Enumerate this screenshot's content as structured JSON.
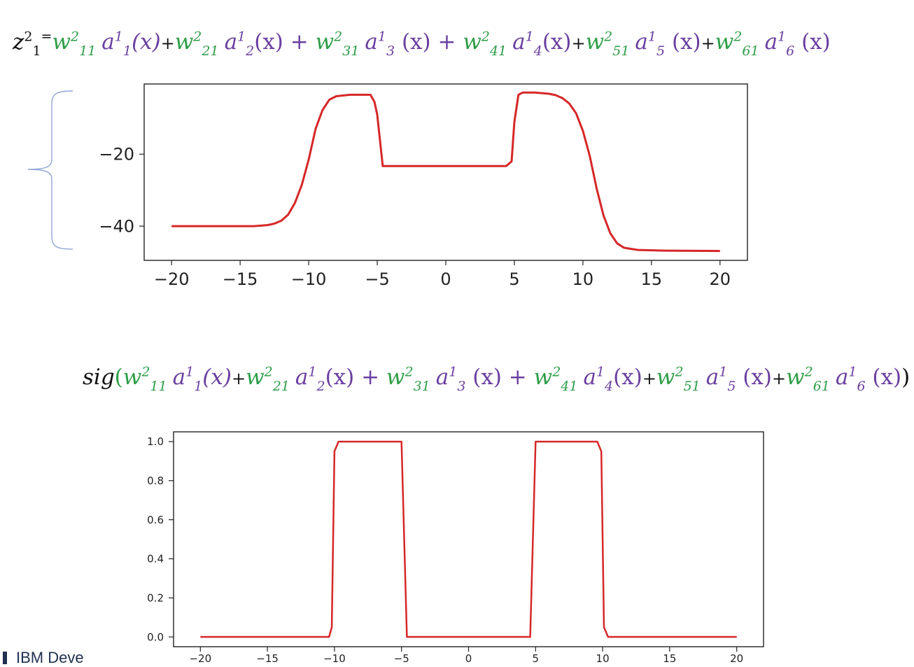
{
  "equation1": {
    "lhs": "z",
    "lhs_sup": "2",
    "lhs_sub": "1",
    "equals": "=",
    "terms": [
      {
        "w": "w",
        "wsup": "2",
        "wsub": "11",
        "a": "a",
        "asup": "1",
        "asub": "1",
        "arg": "(x)",
        "arg_italic": true,
        "op": "+"
      },
      {
        "w": "w",
        "wsup": "2",
        "wsub": "21",
        "a": "a",
        "asup": "1",
        "asub": "2",
        "arg": "(x)",
        "arg_italic": false,
        "op": " + "
      },
      {
        "w": "w",
        "wsup": "2",
        "wsub": "31",
        "a": "a",
        "asup": "1",
        "asub": "3",
        "arg": " (x)",
        "arg_italic": false,
        "op": " + "
      },
      {
        "w": "w",
        "wsup": "2",
        "wsub": "41",
        "a": "a",
        "asup": "1",
        "asub": "4",
        "arg": "(x)",
        "arg_italic": false,
        "op": "+"
      },
      {
        "w": "w",
        "wsup": "2",
        "wsub": "51",
        "a": "a",
        "asup": "1",
        "asub": "5",
        "arg": " (x)",
        "arg_italic": false,
        "op": "+"
      },
      {
        "w": "w",
        "wsup": "2",
        "wsub": "61",
        "a": "a",
        "asup": "1",
        "asub": "6",
        "arg": " (x)",
        "arg_italic": false,
        "op": ""
      }
    ]
  },
  "equation2": {
    "prefix": "sig",
    "open": "(",
    "close": ")",
    "terms": [
      {
        "w": "w",
        "wsup": "2",
        "wsub": "11",
        "a": "a",
        "asup": "1",
        "asub": "1",
        "arg": "(x)",
        "arg_italic": true,
        "op": "+"
      },
      {
        "w": "w",
        "wsup": "2",
        "wsub": "21",
        "a": "a",
        "asup": "1",
        "asub": "2",
        "arg": "(x)",
        "arg_italic": false,
        "op": " + "
      },
      {
        "w": "w",
        "wsup": "2",
        "wsub": "31",
        "a": "a",
        "asup": "1",
        "asub": "3",
        "arg": " (x)",
        "arg_italic": false,
        "op": " + "
      },
      {
        "w": "w",
        "wsup": "2",
        "wsub": "41",
        "a": "a",
        "asup": "1",
        "asub": "4",
        "arg": "(x)",
        "arg_italic": false,
        "op": "+"
      },
      {
        "w": "w",
        "wsup": "2",
        "wsub": "51",
        "a": "a",
        "asup": "1",
        "asub": "5",
        "arg": " (x)",
        "arg_italic": false,
        "op": "+"
      },
      {
        "w": "w",
        "wsup": "2",
        "wsub": "61",
        "a": "a",
        "asup": "1",
        "asub": "6",
        "arg": " (x)",
        "arg_italic": false,
        "op": ""
      }
    ]
  },
  "brand": {
    "text": "IBM Deve"
  },
  "colors": {
    "weight": "#2e9d48",
    "activation": "#6a3fa0",
    "line": "#d62728",
    "brace": "#8ea6d6"
  },
  "chart_data": [
    {
      "type": "line",
      "title": "",
      "xlabel": "",
      "ylabel": "",
      "xlim": [
        -22,
        22
      ],
      "ylim": [
        -49.5,
        -0.5
      ],
      "xticks": [
        -20,
        -15,
        -10,
        -5,
        0,
        5,
        10,
        15,
        20
      ],
      "xtick_labels": [
        "−20",
        "−15",
        "−10",
        "−5",
        "0",
        "5",
        "10",
        "15",
        "20"
      ],
      "yticks": [
        -20,
        -40
      ],
      "ytick_labels": [
        "−20",
        "−40"
      ],
      "grid": false,
      "series": [
        {
          "color": "#d62728",
          "x": [
            -20,
            -14,
            -13,
            -12.5,
            -12,
            -11.5,
            -11,
            -10.5,
            -10,
            -9.5,
            -9,
            -8.5,
            -8,
            -7,
            -6,
            -5.5,
            -5.2,
            -5,
            -4.6,
            4.4,
            4.8,
            5,
            5.3,
            5.6,
            6.5,
            7.5,
            8,
            8.5,
            9,
            9.5,
            10,
            10.5,
            11,
            11.5,
            12,
            12.5,
            13,
            14,
            16,
            20
          ],
          "y": [
            -40,
            -40,
            -39.7,
            -39.3,
            -38.5,
            -36.8,
            -33.5,
            -28.5,
            -21.5,
            -13,
            -7.8,
            -4.9,
            -3.9,
            -3.5,
            -3.5,
            -3.5,
            -5.5,
            -9,
            -23.3,
            -23.3,
            -22,
            -11,
            -3.5,
            -2.9,
            -2.9,
            -3.2,
            -3.6,
            -4.4,
            -5.9,
            -8.6,
            -13.5,
            -20.5,
            -29.5,
            -37,
            -42,
            -44.8,
            -46,
            -46.6,
            -46.8,
            -46.9
          ]
        }
      ]
    },
    {
      "type": "line",
      "title": "",
      "xlabel": "",
      "ylabel": "",
      "xlim": [
        -22,
        22
      ],
      "ylim": [
        -0.05,
        1.05
      ],
      "xticks": [
        -20,
        -15,
        -10,
        -5,
        0,
        5,
        10,
        15,
        20
      ],
      "xtick_labels": [
        "−20",
        "−15",
        "−10",
        "−5",
        "0",
        "5",
        "10",
        "15",
        "20"
      ],
      "yticks": [
        0.0,
        0.2,
        0.4,
        0.6,
        0.8,
        1.0
      ],
      "ytick_labels": [
        "0.0",
        "0.2",
        "0.4",
        "0.6",
        "0.8",
        "1.0"
      ],
      "grid": false,
      "series": [
        {
          "color": "#d62728",
          "x": [
            -20,
            -10.4,
            -10.2,
            -10.0,
            -9.7,
            -5.0,
            -4.6,
            4.6,
            5.0,
            9.6,
            9.9,
            10.1,
            10.4,
            20
          ],
          "y": [
            0,
            0,
            0.05,
            0.95,
            1,
            1,
            0,
            0,
            1,
            1,
            0.95,
            0.05,
            0,
            0
          ]
        }
      ]
    }
  ]
}
